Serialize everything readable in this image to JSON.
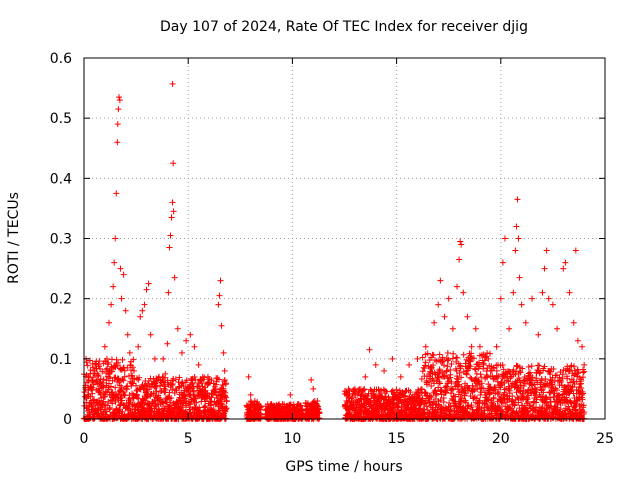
{
  "chart_data": {
    "type": "scatter",
    "title": "Day 107 of 2024, Rate Of TEC Index for receiver djig",
    "xlabel": "GPS time / hours",
    "ylabel": "ROTI / TECUs",
    "xlim": [
      0,
      25
    ],
    "ylim": [
      0,
      0.6
    ],
    "x_ticks": [
      0,
      5,
      10,
      15,
      20,
      25
    ],
    "x_tick_labels": [
      "0",
      "5",
      "10",
      "15",
      "20",
      "25"
    ],
    "y_ticks": [
      0,
      0.1,
      0.2,
      0.3,
      0.4,
      0.5,
      0.6
    ],
    "y_tick_labels": [
      "0",
      "0.1",
      "0.2",
      "0.3",
      "0.4",
      "0.5",
      "0.6"
    ],
    "grid": true,
    "marker": "+",
    "color": "#ff0000",
    "series": [
      {
        "name": "ROTI",
        "points": [
          [
            0.1,
            0.1
          ],
          [
            0.2,
            0.07
          ],
          [
            0.35,
            0.05
          ],
          [
            0.5,
            0.08
          ],
          [
            0.7,
            0.09
          ],
          [
            0.9,
            0.06
          ],
          [
            1.0,
            0.12
          ],
          [
            1.1,
            0.1
          ],
          [
            1.2,
            0.16
          ],
          [
            1.3,
            0.19
          ],
          [
            1.4,
            0.22
          ],
          [
            1.45,
            0.26
          ],
          [
            1.5,
            0.3
          ],
          [
            1.55,
            0.375
          ],
          [
            1.6,
            0.46
          ],
          [
            1.62,
            0.49
          ],
          [
            1.65,
            0.515
          ],
          [
            1.68,
            0.535
          ],
          [
            1.72,
            0.53
          ],
          [
            1.75,
            0.25
          ],
          [
            1.8,
            0.2
          ],
          [
            1.9,
            0.24
          ],
          [
            2.0,
            0.18
          ],
          [
            2.1,
            0.14
          ],
          [
            2.2,
            0.11
          ],
          [
            2.4,
            0.08
          ],
          [
            2.6,
            0.12
          ],
          [
            2.7,
            0.17
          ],
          [
            2.8,
            0.18
          ],
          [
            2.9,
            0.19
          ],
          [
            3.0,
            0.215
          ],
          [
            3.1,
            0.225
          ],
          [
            3.2,
            0.14
          ],
          [
            3.4,
            0.1
          ],
          [
            3.6,
            0.07
          ],
          [
            3.8,
            0.1
          ],
          [
            3.9,
            0.075
          ],
          [
            4.0,
            0.125
          ],
          [
            4.05,
            0.21
          ],
          [
            4.1,
            0.285
          ],
          [
            4.15,
            0.305
          ],
          [
            4.2,
            0.335
          ],
          [
            4.25,
            0.36
          ],
          [
            4.28,
            0.425
          ],
          [
            4.3,
            0.345
          ],
          [
            4.35,
            0.235
          ],
          [
            4.25,
            0.557
          ],
          [
            4.5,
            0.15
          ],
          [
            4.7,
            0.11
          ],
          [
            4.9,
            0.13
          ],
          [
            5.1,
            0.14
          ],
          [
            5.3,
            0.12
          ],
          [
            5.5,
            0.09
          ],
          [
            5.7,
            0.07
          ],
          [
            6.0,
            0.06
          ],
          [
            6.3,
            0.05
          ],
          [
            6.45,
            0.19
          ],
          [
            6.5,
            0.205
          ],
          [
            6.55,
            0.23
          ],
          [
            6.6,
            0.155
          ],
          [
            6.7,
            0.11
          ],
          [
            6.75,
            0.08
          ],
          [
            6.85,
            0.03
          ],
          [
            7.9,
            0.07
          ],
          [
            8.0,
            0.04
          ],
          [
            8.2,
            0.03
          ],
          [
            9.0,
            0.025
          ],
          [
            9.6,
            0.02
          ],
          [
            9.9,
            0.04
          ],
          [
            10.3,
            0.025
          ],
          [
            10.9,
            0.065
          ],
          [
            11.0,
            0.05
          ],
          [
            11.2,
            0.03
          ],
          [
            12.6,
            0.03
          ],
          [
            13.0,
            0.05
          ],
          [
            13.5,
            0.07
          ],
          [
            13.7,
            0.115
          ],
          [
            14.0,
            0.09
          ],
          [
            14.4,
            0.08
          ],
          [
            14.8,
            0.1
          ],
          [
            15.2,
            0.07
          ],
          [
            15.6,
            0.09
          ],
          [
            16.0,
            0.1
          ],
          [
            16.4,
            0.12
          ],
          [
            16.8,
            0.16
          ],
          [
            17.0,
            0.19
          ],
          [
            17.1,
            0.23
          ],
          [
            17.3,
            0.17
          ],
          [
            17.5,
            0.2
          ],
          [
            17.7,
            0.15
          ],
          [
            17.9,
            0.22
          ],
          [
            18.0,
            0.265
          ],
          [
            18.05,
            0.295
          ],
          [
            18.1,
            0.29
          ],
          [
            18.2,
            0.21
          ],
          [
            18.4,
            0.17
          ],
          [
            18.6,
            0.12
          ],
          [
            18.8,
            0.15
          ],
          [
            19.0,
            0.12
          ],
          [
            19.4,
            0.1
          ],
          [
            19.8,
            0.12
          ],
          [
            20.0,
            0.2
          ],
          [
            20.1,
            0.26
          ],
          [
            20.2,
            0.3
          ],
          [
            20.4,
            0.15
          ],
          [
            20.6,
            0.21
          ],
          [
            20.7,
            0.28
          ],
          [
            20.75,
            0.32
          ],
          [
            20.8,
            0.365
          ],
          [
            20.85,
            0.3
          ],
          [
            20.9,
            0.235
          ],
          [
            21.0,
            0.19
          ],
          [
            21.2,
            0.16
          ],
          [
            21.5,
            0.2
          ],
          [
            21.8,
            0.14
          ],
          [
            22.0,
            0.21
          ],
          [
            22.1,
            0.25
          ],
          [
            22.2,
            0.28
          ],
          [
            22.3,
            0.2
          ],
          [
            22.5,
            0.19
          ],
          [
            22.7,
            0.15
          ],
          [
            23.0,
            0.25
          ],
          [
            23.1,
            0.26
          ],
          [
            23.3,
            0.21
          ],
          [
            23.5,
            0.16
          ],
          [
            23.6,
            0.28
          ],
          [
            23.7,
            0.13
          ],
          [
            23.9,
            0.12
          ],
          [
            24.0,
            0.09
          ]
        ],
        "dense_bands": [
          {
            "x_start": 0.0,
            "x_end": 2.4,
            "y_min": 0.0,
            "y_max": 0.1
          },
          {
            "x_start": 2.4,
            "x_end": 6.85,
            "y_min": 0.0,
            "y_max": 0.07
          },
          {
            "x_start": 7.8,
            "x_end": 8.5,
            "y_min": 0.0,
            "y_max": 0.03
          },
          {
            "x_start": 8.7,
            "x_end": 10.5,
            "y_min": 0.0,
            "y_max": 0.025
          },
          {
            "x_start": 10.6,
            "x_end": 11.3,
            "y_min": 0.0,
            "y_max": 0.03
          },
          {
            "x_start": 12.5,
            "x_end": 16.2,
            "y_min": 0.0,
            "y_max": 0.05
          },
          {
            "x_start": 16.2,
            "x_end": 19.5,
            "y_min": 0.0,
            "y_max": 0.11
          },
          {
            "x_start": 19.5,
            "x_end": 24.0,
            "y_min": 0.0,
            "y_max": 0.09
          }
        ]
      }
    ]
  }
}
